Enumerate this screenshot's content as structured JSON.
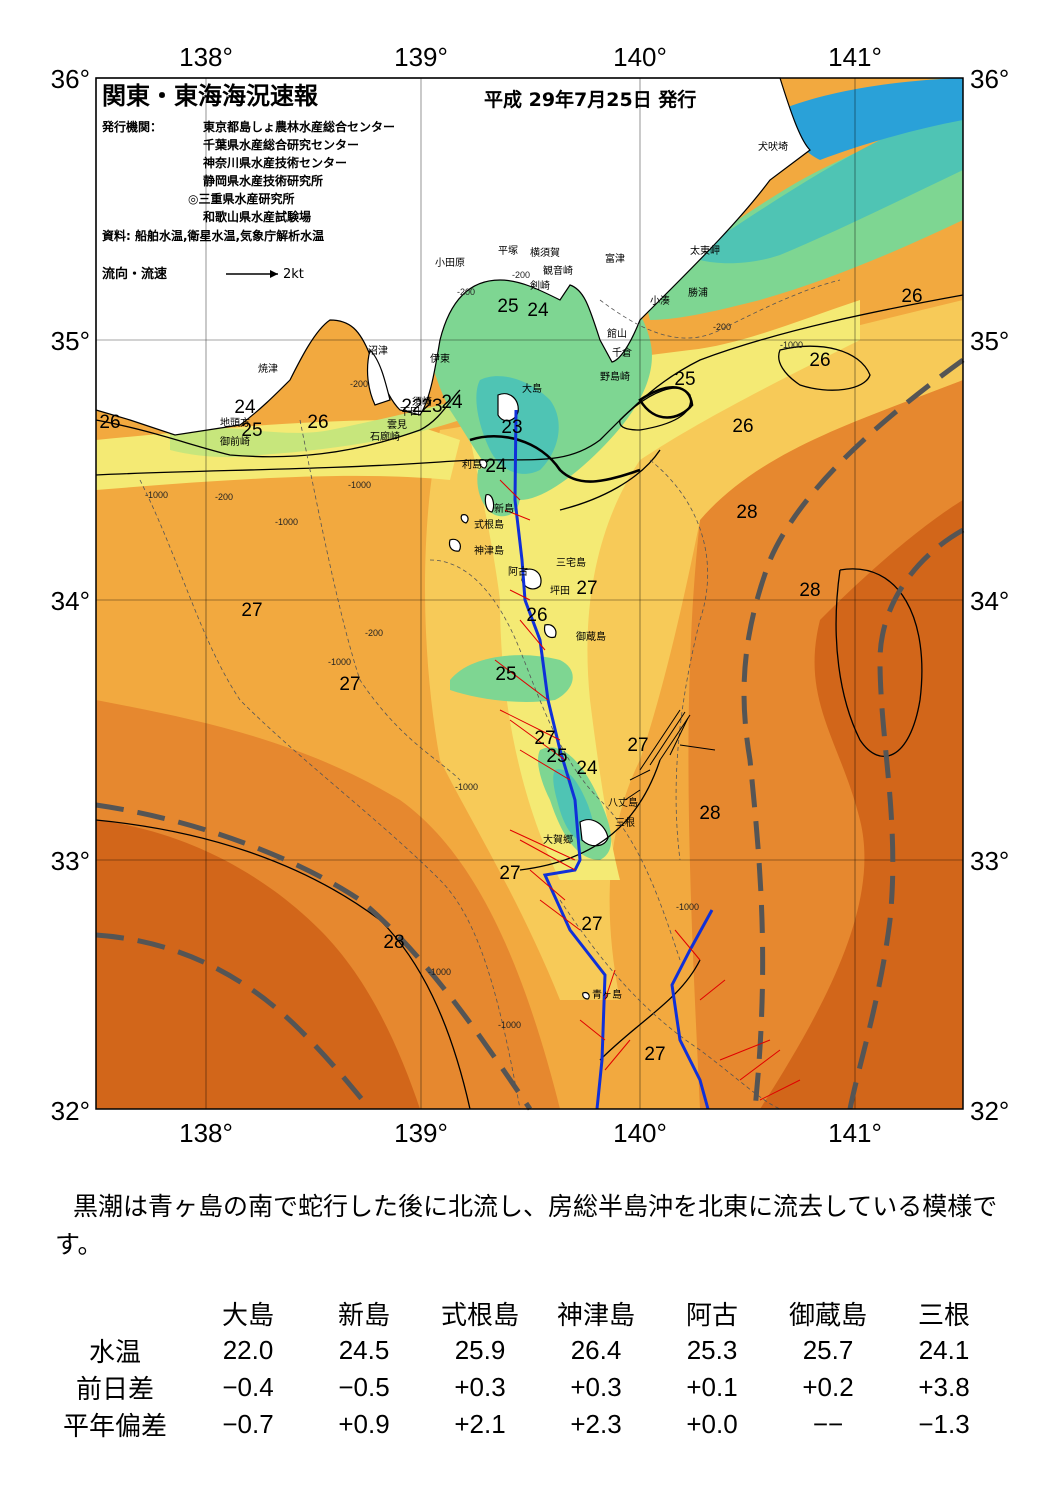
{
  "header": {
    "title": "関東・東海海況速報",
    "issue_date": "平成 29年7月25日 発行",
    "publisher_label": "発行機関：",
    "publishers": [
      "東京都島しょ農林水産総合センター",
      "千葉県水産総合研究センター",
      "神奈川県水産技術センター",
      "静岡県水産技術研究所",
      "◎三重県水産研究所",
      "和歌山県水産試験場"
    ],
    "sources": "資料: 船舶水温,衛星水温,気象庁解析水温",
    "legend_label": "流向・流速",
    "legend_scale": "2kt"
  },
  "map": {
    "lon_range": [
      137.5,
      141.5
    ],
    "lat_range": [
      32,
      36
    ],
    "lon_ticks": [
      "138°",
      "139°",
      "140°",
      "141°"
    ],
    "lat_ticks": [
      "32°",
      "33°",
      "34°",
      "35°",
      "36°"
    ],
    "colors": {
      "warmest": "#d2661a",
      "warm": "#e6882f",
      "mid": "#f2a93f",
      "mild": "#f7ca58",
      "cool": "#f4ea74",
      "cooler": "#c7e67c",
      "cold": "#7ed692",
      "colder": "#4fc4b4",
      "coldest": "#2aa1d8",
      "land": "#ffffff",
      "kuroshio_axis": "#1030d8",
      "current_arrows": "#e00000",
      "boundary": "#555555"
    },
    "temperature_labels": [
      "26",
      "24",
      "25",
      "26",
      "22",
      "23",
      "24",
      "23",
      "24",
      "25",
      "24",
      "25",
      "26",
      "26",
      "26",
      "28",
      "28",
      "27",
      "27",
      "27",
      "25",
      "26",
      "24",
      "25",
      "27",
      "28",
      "27",
      "27",
      "28",
      "27",
      "27"
    ],
    "place_labels": [
      "焼津",
      "地頭方",
      "御前崎",
      "沼津",
      "伊東",
      "小田原",
      "平塚",
      "横須賀",
      "観音崎",
      "剣崎",
      "富津",
      "雲見",
      "石廊崎",
      "下田",
      "須崎",
      "大島",
      "館山",
      "千倉",
      "野島崎",
      "太東岬",
      "勝浦",
      "小湊",
      "犬吠埼",
      "利島",
      "新島",
      "式根島",
      "神津島",
      "阿古",
      "坪田",
      "三宅島",
      "御蔵島",
      "八丈島",
      "三根",
      "大賀郷",
      "青ヶ島"
    ],
    "depth_labels": [
      "-200",
      "-200",
      "-200",
      "-200",
      "-200",
      "-200",
      "-1000",
      "-1000",
      "-1000",
      "-1000",
      "-1000",
      "-1000",
      "-1000",
      "-1000",
      "-1000"
    ]
  },
  "summary": "黒潮は青ヶ島の南で蛇行した後に北流し、房総半島沖を北東に流去している模様です。",
  "stats": {
    "columns": [
      "大島",
      "新島",
      "式根島",
      "神津島",
      "阿古",
      "御蔵島",
      "三根"
    ],
    "rows": [
      {
        "label": "水温",
        "values": [
          "22.0",
          "24.5",
          "25.9",
          "26.4",
          "25.3",
          "25.7",
          "24.1"
        ]
      },
      {
        "label": "前日差",
        "values": [
          "−0.4",
          "−0.5",
          "+0.3",
          "+0.3",
          "+0.1",
          "+0.2",
          "+3.8"
        ]
      },
      {
        "label": "平年偏差",
        "values": [
          "−0.7",
          "+0.9",
          "+2.1",
          "+2.3",
          "+0.0",
          "−−",
          "−1.3"
        ]
      }
    ]
  }
}
